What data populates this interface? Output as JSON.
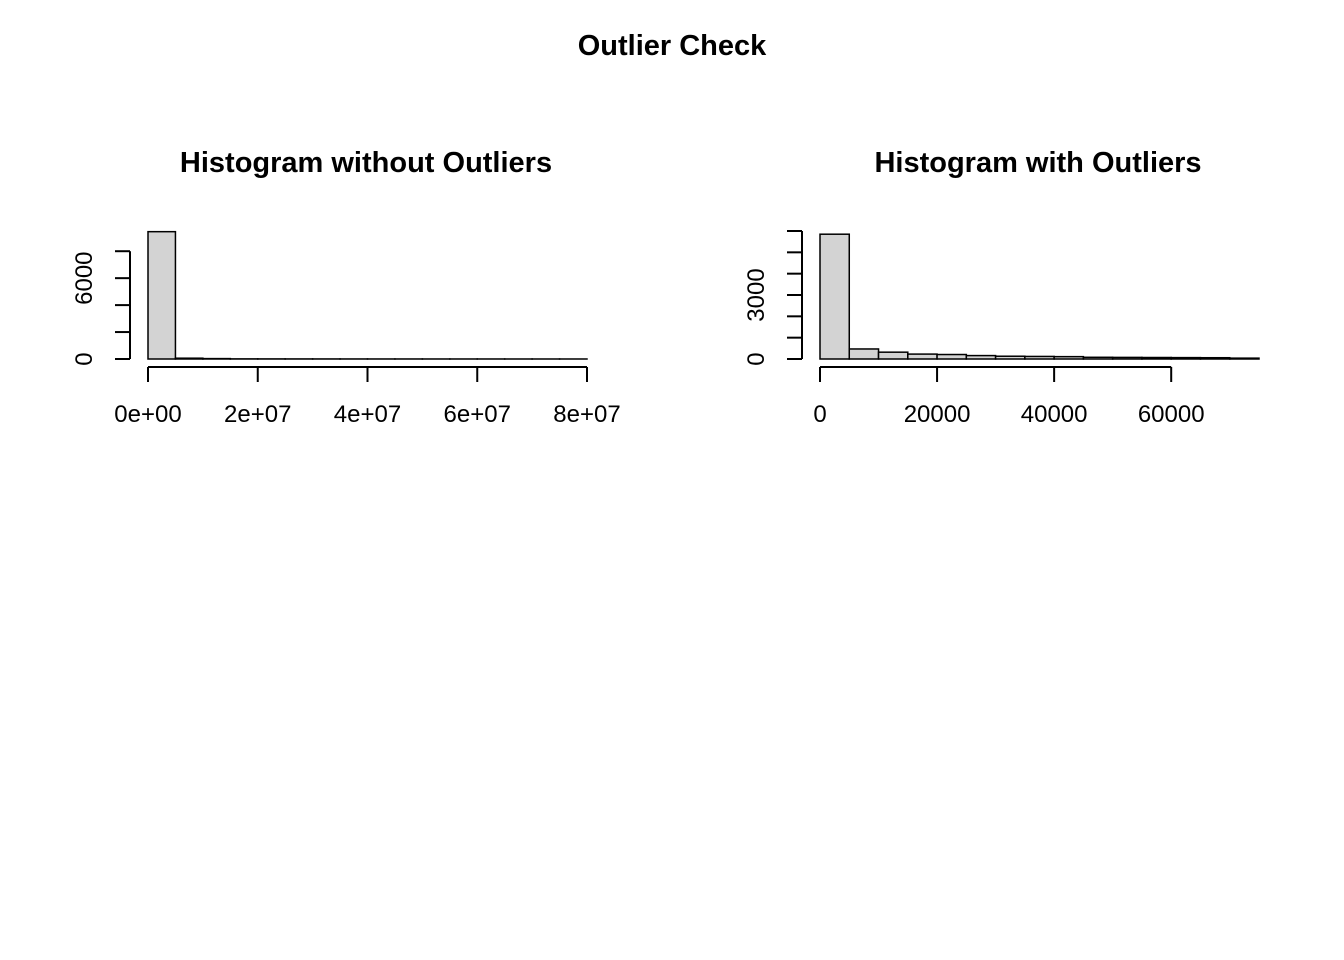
{
  "figure": {
    "title": "Outlier Check"
  },
  "chart_data": [
    {
      "type": "bar",
      "subtype": "histogram",
      "title": "Histogram without Outliers",
      "xlabel": "",
      "ylabel": "",
      "xlim": [
        0,
        80000000
      ],
      "ylim": [
        0,
        9500
      ],
      "x_ticks": [
        0,
        20000000,
        40000000,
        60000000,
        80000000
      ],
      "x_tick_labels": [
        "0e+00",
        "2e+07",
        "4e+07",
        "6e+07",
        "8e+07"
      ],
      "y_ticks": [
        0,
        2000,
        4000,
        6000,
        8000
      ],
      "y_tick_labels": [
        "0",
        "",
        "",
        "6000",
        ""
      ],
      "bin_width": 5000000,
      "bins": [
        {
          "x0": 0,
          "x1": 5000000,
          "count": 9450
        },
        {
          "x0": 5000000,
          "x1": 10000000,
          "count": 60
        },
        {
          "x0": 10000000,
          "x1": 15000000,
          "count": 30
        },
        {
          "x0": 15000000,
          "x1": 20000000,
          "count": 10
        },
        {
          "x0": 20000000,
          "x1": 25000000,
          "count": 8
        },
        {
          "x0": 25000000,
          "x1": 30000000,
          "count": 6
        },
        {
          "x0": 30000000,
          "x1": 35000000,
          "count": 5
        },
        {
          "x0": 35000000,
          "x1": 40000000,
          "count": 4
        },
        {
          "x0": 40000000,
          "x1": 45000000,
          "count": 3
        },
        {
          "x0": 45000000,
          "x1": 50000000,
          "count": 3
        },
        {
          "x0": 50000000,
          "x1": 55000000,
          "count": 2
        },
        {
          "x0": 55000000,
          "x1": 60000000,
          "count": 2
        },
        {
          "x0": 60000000,
          "x1": 65000000,
          "count": 2
        },
        {
          "x0": 65000000,
          "x1": 70000000,
          "count": 1
        },
        {
          "x0": 70000000,
          "x1": 75000000,
          "count": 1
        },
        {
          "x0": 75000000,
          "x1": 80000000,
          "count": 1
        }
      ],
      "grid": false,
      "fill_color": "#d3d3d3",
      "edge_color": "#000000"
    },
    {
      "type": "bar",
      "subtype": "histogram",
      "title": "Histogram with Outliers",
      "xlabel": "",
      "ylabel": "",
      "xlim": [
        0,
        75000
      ],
      "ylim": [
        0,
        6000
      ],
      "x_ticks": [
        0,
        20000,
        40000,
        60000
      ],
      "x_tick_labels": [
        "0",
        "20000",
        "40000",
        "60000"
      ],
      "y_ticks": [
        0,
        1000,
        2000,
        3000,
        4000,
        5000,
        6000
      ],
      "y_tick_labels": [
        "0",
        "",
        "",
        "3000",
        "",
        "",
        ""
      ],
      "bin_width": 5000,
      "bins": [
        {
          "x0": 0,
          "x1": 5000,
          "count": 5850
        },
        {
          "x0": 5000,
          "x1": 10000,
          "count": 470
        },
        {
          "x0": 10000,
          "x1": 15000,
          "count": 320
        },
        {
          "x0": 15000,
          "x1": 20000,
          "count": 230
        },
        {
          "x0": 20000,
          "x1": 25000,
          "count": 210
        },
        {
          "x0": 25000,
          "x1": 30000,
          "count": 160
        },
        {
          "x0": 30000,
          "x1": 35000,
          "count": 130
        },
        {
          "x0": 35000,
          "x1": 40000,
          "count": 120
        },
        {
          "x0": 40000,
          "x1": 45000,
          "count": 110
        },
        {
          "x0": 45000,
          "x1": 50000,
          "count": 80
        },
        {
          "x0": 50000,
          "x1": 55000,
          "count": 75
        },
        {
          "x0": 55000,
          "x1": 60000,
          "count": 70
        },
        {
          "x0": 60000,
          "x1": 65000,
          "count": 65
        },
        {
          "x0": 65000,
          "x1": 70000,
          "count": 60
        },
        {
          "x0": 70000,
          "x1": 75000,
          "count": 40
        }
      ],
      "grid": false,
      "fill_color": "#d3d3d3",
      "edge_color": "#000000"
    }
  ]
}
